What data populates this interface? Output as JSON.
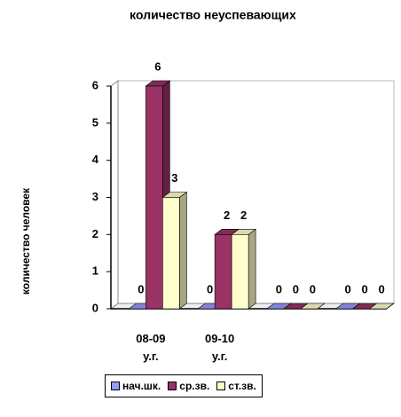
{
  "chart_data": {
    "type": "bar",
    "title": "количество неуспевающих",
    "y_label": "количество человек",
    "categories": [
      "08-09 у.г.",
      "09-10 у.г.",
      null,
      null
    ],
    "series": [
      {
        "name": "нач.шк.",
        "color": "#9999ff",
        "values": [
          0,
          0,
          0,
          0
        ]
      },
      {
        "name": "ср.зв.",
        "color": "#993366",
        "values": [
          6,
          2,
          0,
          0
        ]
      },
      {
        "name": "ст.зв.",
        "color": "#ffffcc",
        "values": [
          3,
          2,
          0,
          0
        ]
      }
    ],
    "ylim": [
      0,
      6
    ],
    "yticks": [
      0,
      1,
      2,
      3,
      4,
      5,
      6
    ],
    "grid": false
  }
}
